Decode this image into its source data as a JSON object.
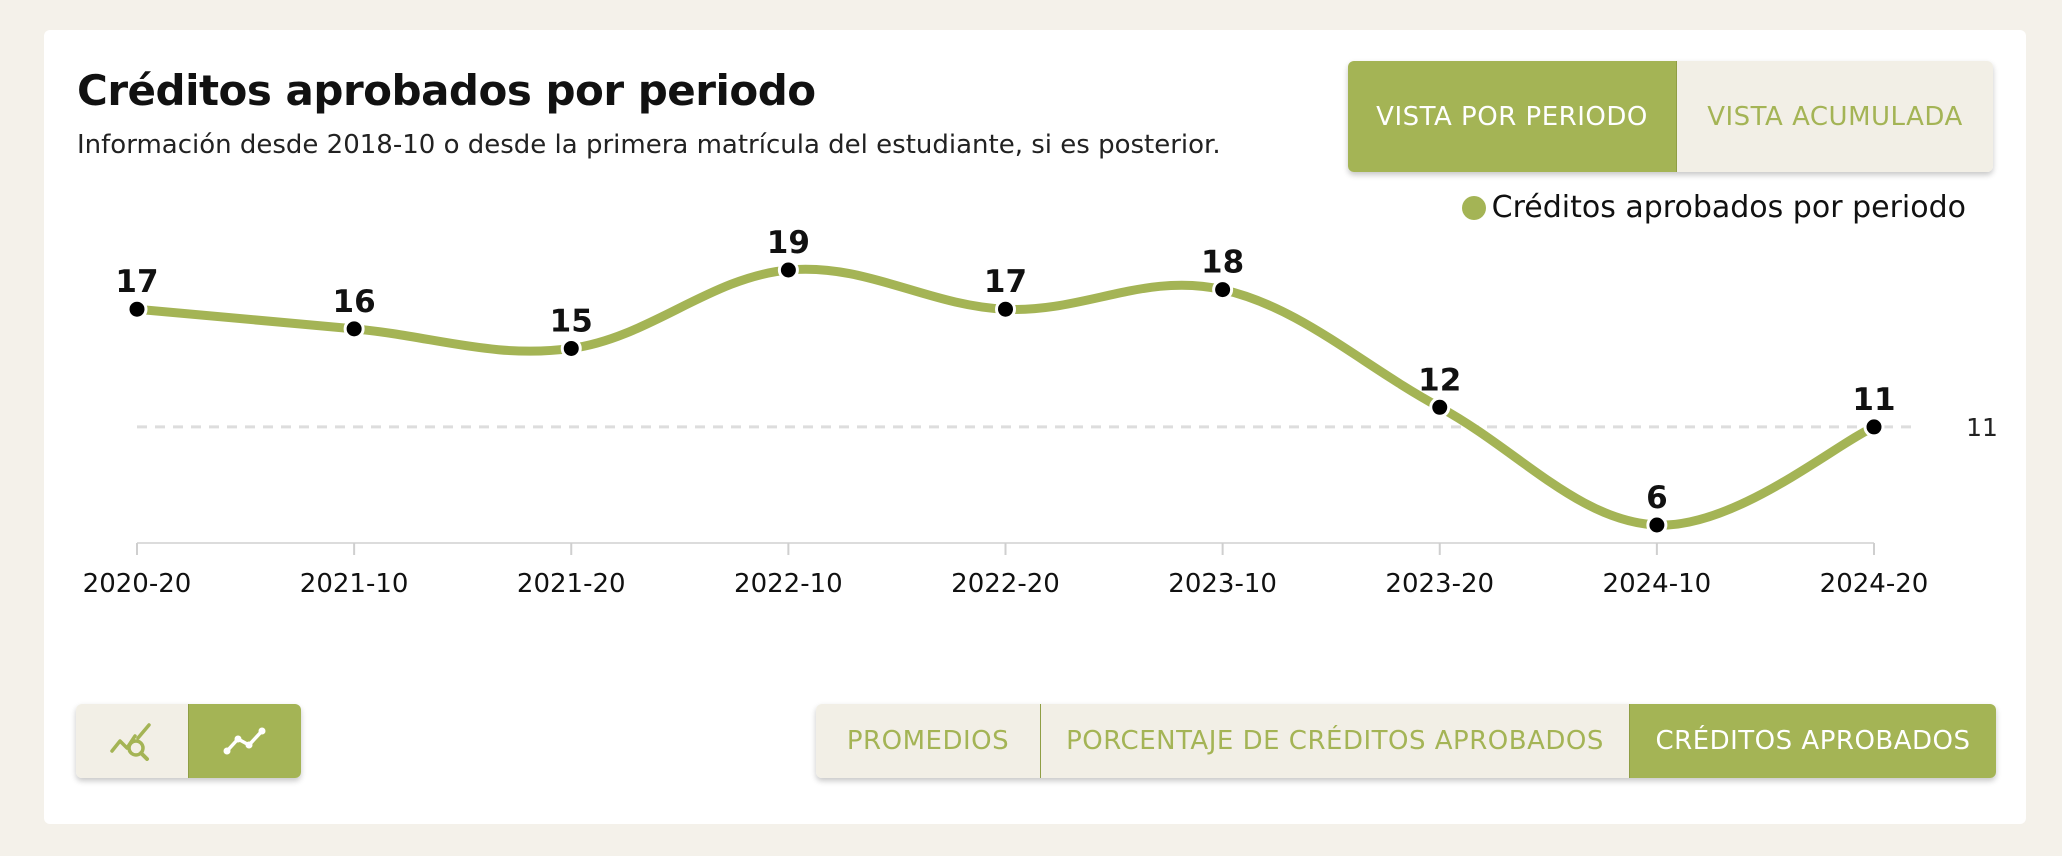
{
  "header": {
    "title": "Créditos aprobados por periodo",
    "subtitle": "Información desde 2018-10 o desde la primera matrícula del estudiante, si es posterior."
  },
  "view_toggle": {
    "items": [
      {
        "label": "VISTA POR PERIODO",
        "active": true
      },
      {
        "label": "VISTA ACUMULADA",
        "active": false
      }
    ]
  },
  "chart_type_toggle": {
    "items": [
      {
        "icon": "chart-search-icon",
        "active": false
      },
      {
        "icon": "line-chart-icon",
        "active": true
      }
    ]
  },
  "metric_toggle": {
    "items": [
      {
        "label": "PROMEDIOS",
        "active": false
      },
      {
        "label": "PORCENTAJE DE CRÉDITOS APROBADOS",
        "active": false
      },
      {
        "label": "CRÉDITOS APROBADOS",
        "active": true
      }
    ]
  },
  "colors": {
    "accent": "#a4b455",
    "inactive_bg": "#f2efe6",
    "page_bg": "#f4f1ea",
    "point": "#000000",
    "reference_line": "#dddddd"
  },
  "chart_data": {
    "type": "line",
    "categories": [
      "2020-20",
      "2021-10",
      "2021-20",
      "2022-10",
      "2022-20",
      "2023-10",
      "2023-20",
      "2024-10",
      "2024-20"
    ],
    "series": [
      {
        "name": "Créditos aprobados por periodo",
        "values": [
          17,
          16,
          15,
          19,
          17,
          18,
          12,
          6,
          11
        ]
      }
    ],
    "reference_line": {
      "value": 11,
      "label": "11",
      "style": "dashed"
    },
    "data_labels": true,
    "smooth": true,
    "legend": "top-right",
    "grid": false,
    "ylim": [
      0,
      21
    ],
    "xlabel": "",
    "ylabel": ""
  }
}
